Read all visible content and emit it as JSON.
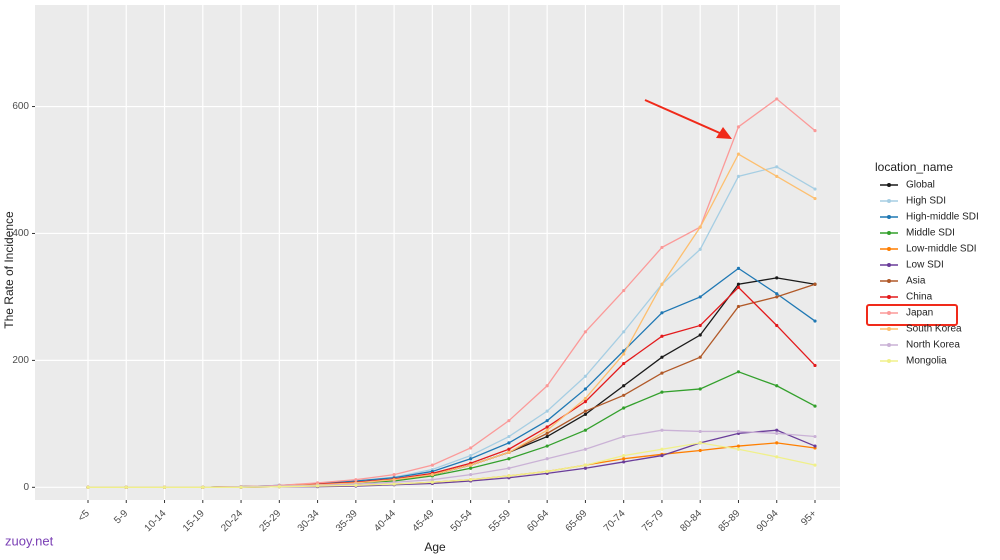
{
  "chart_data": {
    "type": "line",
    "x_label": "Age",
    "y_label": "The Rate of Incidence",
    "legend_title": "location_name",
    "legend": "right",
    "grid": true,
    "categories": [
      "<5",
      "5-9",
      "10-14",
      "15-19",
      "20-24",
      "25-29",
      "30-34",
      "35-39",
      "40-44",
      "45-49",
      "50-54",
      "55-59",
      "60-64",
      "65-69",
      "70-74",
      "75-79",
      "80-84",
      "85-89",
      "90-94",
      "95+"
    ],
    "ylim": [
      -20,
      760
    ],
    "yticks": [
      0,
      200,
      400,
      600
    ],
    "series": [
      {
        "name": "Global",
        "color": "#1a1a1a",
        "values": [
          0,
          0,
          0,
          0,
          1,
          2,
          5,
          8,
          12,
          20,
          35,
          55,
          80,
          115,
          160,
          205,
          240,
          320,
          330,
          320
        ]
      },
      {
        "name": "High SDI",
        "color": "#a6cee3",
        "values": [
          0,
          0,
          0,
          0,
          1,
          3,
          6,
          10,
          16,
          28,
          50,
          80,
          120,
          175,
          245,
          320,
          375,
          490,
          505,
          470
        ]
      },
      {
        "name": "High-middle SDI",
        "color": "#1f78b4",
        "values": [
          0,
          0,
          0,
          0,
          1,
          3,
          6,
          10,
          15,
          25,
          45,
          70,
          105,
          155,
          215,
          275,
          300,
          345,
          305,
          262
        ]
      },
      {
        "name": "Middle SDI",
        "color": "#33a02c",
        "values": [
          0,
          0,
          0,
          0,
          1,
          2,
          4,
          7,
          10,
          18,
          30,
          45,
          65,
          90,
          125,
          150,
          155,
          182,
          160,
          128
        ]
      },
      {
        "name": "Low-middle SDI",
        "color": "#ff7f00",
        "values": [
          0,
          0,
          0,
          0,
          0,
          1,
          2,
          3,
          5,
          8,
          12,
          18,
          25,
          35,
          45,
          52,
          58,
          65,
          70,
          62
        ]
      },
      {
        "name": "Low SDI",
        "color": "#6a3d9a",
        "values": [
          0,
          0,
          0,
          0,
          0,
          1,
          1,
          2,
          4,
          6,
          10,
          15,
          22,
          30,
          40,
          50,
          70,
          85,
          90,
          65
        ]
      },
      {
        "name": "Asia",
        "color": "#b15928",
        "values": [
          0,
          0,
          0,
          0,
          1,
          2,
          5,
          8,
          12,
          20,
          35,
          55,
          85,
          120,
          145,
          180,
          205,
          285,
          300,
          320
        ]
      },
      {
        "name": "China",
        "color": "#e31a1c",
        "values": [
          0,
          0,
          0,
          0,
          1,
          2,
          5,
          8,
          13,
          22,
          38,
          60,
          95,
          135,
          195,
          238,
          255,
          315,
          255,
          192
        ]
      },
      {
        "name": "Japan",
        "color": "#fb9a99",
        "values": [
          0,
          0,
          0,
          0,
          1,
          3,
          7,
          12,
          20,
          35,
          62,
          105,
          160,
          245,
          310,
          378,
          410,
          568,
          612,
          562
        ]
      },
      {
        "name": "South Korea",
        "color": "#fdbf6f",
        "values": [
          0,
          0,
          0,
          0,
          1,
          2,
          4,
          7,
          12,
          20,
          35,
          55,
          90,
          140,
          210,
          320,
          410,
          525,
          490,
          455
        ]
      },
      {
        "name": "North Korea",
        "color": "#cab2d6",
        "values": [
          0,
          0,
          0,
          0,
          1,
          2,
          3,
          5,
          8,
          12,
          20,
          30,
          45,
          60,
          80,
          90,
          88,
          88,
          85,
          80
        ]
      },
      {
        "name": "Mongolia",
        "color": "#f0f08a",
        "values": [
          0,
          0,
          0,
          0,
          0,
          1,
          2,
          3,
          5,
          8,
          12,
          18,
          25,
          35,
          50,
          60,
          70,
          60,
          48,
          35
        ]
      }
    ]
  },
  "watermark": "zuoy.net"
}
